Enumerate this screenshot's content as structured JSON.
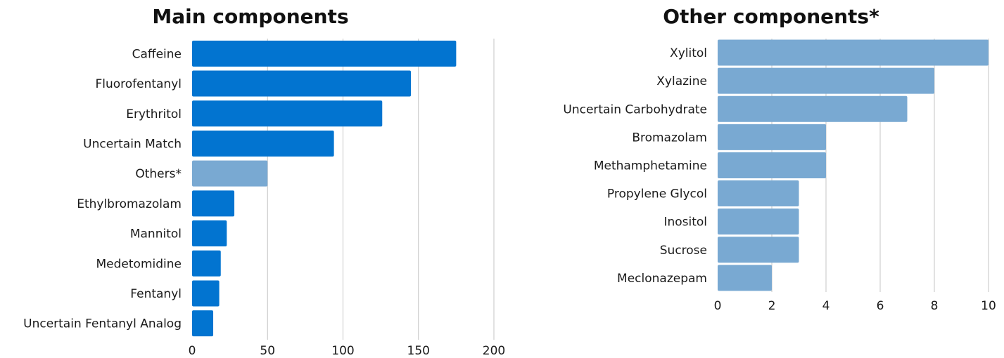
{
  "chart_data": [
    {
      "type": "bar",
      "orientation": "horizontal",
      "title": "Main components",
      "categories": [
        "Caffeine",
        "Fluorofentanyl",
        "Erythritol",
        "Uncertain Match",
        "Others*",
        "Ethylbromazolam",
        "Mannitol",
        "Medetomidine",
        "Fentanyl",
        "Uncertain Fentanyl Analog"
      ],
      "values": [
        175,
        145,
        126,
        94,
        50,
        28,
        23,
        19,
        18,
        14
      ],
      "bar_colors": [
        "#0274d0",
        "#0274d0",
        "#0274d0",
        "#0274d0",
        "#79a9d2",
        "#0274d0",
        "#0274d0",
        "#0274d0",
        "#0274d0",
        "#0274d0"
      ],
      "xlim": [
        0,
        200
      ],
      "xticks": [
        0,
        50,
        100,
        150,
        200
      ],
      "xlabel": "",
      "ylabel": "",
      "grid": "vertical"
    },
    {
      "type": "bar",
      "orientation": "horizontal",
      "title": "Other components*",
      "categories": [
        "Xylitol",
        "Xylazine",
        "Uncertain Carbohydrate",
        "Bromazolam",
        "Methamphetamine",
        "Propylene Glycol",
        "Inositol",
        "Sucrose",
        "Meclonazepam"
      ],
      "values": [
        10,
        8,
        7,
        4,
        4,
        3,
        3,
        3,
        2
      ],
      "bar_colors": [
        "#79a9d2",
        "#79a9d2",
        "#79a9d2",
        "#79a9d2",
        "#79a9d2",
        "#79a9d2",
        "#79a9d2",
        "#79a9d2",
        "#79a9d2"
      ],
      "xlim": [
        0,
        10
      ],
      "xticks": [
        0,
        2,
        4,
        6,
        8,
        10
      ],
      "xlabel": "",
      "ylabel": "",
      "grid": "vertical"
    }
  ]
}
